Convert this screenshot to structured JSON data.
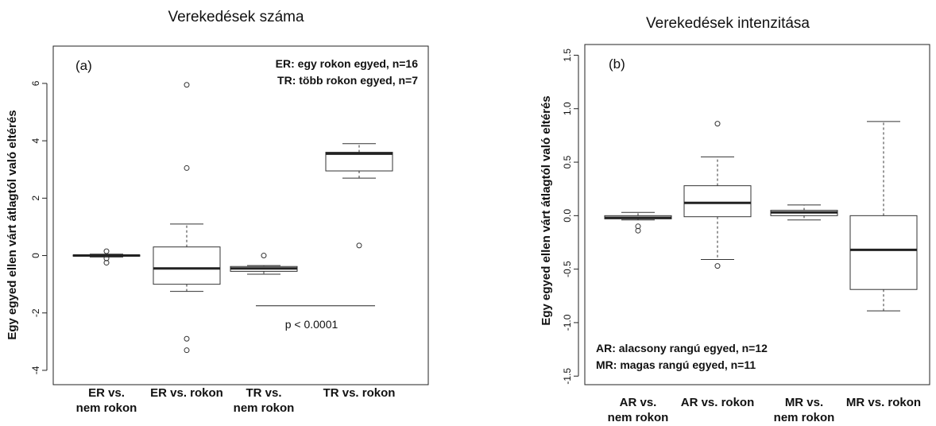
{
  "chart_data": [
    {
      "type": "box",
      "title": "Verekedések száma",
      "panel_label": "(a)",
      "ylabel": "Egy egyed ellen várt átlagtól való eltérés",
      "ylim": [
        -4.5,
        7.3
      ],
      "yticks": [
        "6",
        "4",
        "2",
        "0",
        "-2",
        "-4"
      ],
      "ytick_values": [
        6,
        4,
        2,
        0,
        -2,
        -4
      ],
      "legend": [
        "ER: egy rokon egyed, n=16",
        "TR: több rokon egyed, n=7"
      ],
      "annotation": "p < 0.0001",
      "bracket": [
        3,
        4
      ],
      "bracket_y": -1.75,
      "categories": [
        [
          "ER vs.",
          "nem rokon"
        ],
        [
          "ER vs. rokon"
        ],
        [
          "TR vs.",
          "nem rokon"
        ],
        [
          "TR vs. rokon"
        ]
      ],
      "boxes": [
        {
          "wlo": -0.05,
          "q1": -0.02,
          "med": 0.0,
          "q3": 0.02,
          "whi": 0.05,
          "outliers": [
            0.15,
            -0.1,
            -0.25
          ]
        },
        {
          "wlo": -1.25,
          "q1": -1.0,
          "med": -0.45,
          "q3": 0.3,
          "whi": 1.1,
          "outliers": [
            5.95,
            3.05,
            -2.9,
            -3.3
          ]
        },
        {
          "wlo": -0.65,
          "q1": -0.55,
          "med": -0.45,
          "q3": -0.38,
          "whi": -0.35,
          "outliers": [
            0.0
          ]
        },
        {
          "wlo": 2.7,
          "q1": 2.95,
          "med": 3.55,
          "q3": 3.6,
          "whi": 3.9,
          "outliers": [
            0.35
          ]
        }
      ]
    },
    {
      "type": "box",
      "title": "Verekedések intenzitása",
      "panel_label": "(b)",
      "ylabel": "Egy egyed ellen várt átlagtól való eltérés",
      "ylim": [
        -1.58,
        1.6
      ],
      "yticks": [
        "1.5",
        "1.0",
        "0.5",
        "0.0",
        "-0.5",
        "-1.0",
        "-1.5"
      ],
      "ytick_values": [
        1.5,
        1.0,
        0.5,
        0.0,
        -0.5,
        -1.0,
        -1.5
      ],
      "legend": [
        "AR: alacsony rangú egyed, n=12",
        "MR: magas rangú egyed, n=11"
      ],
      "categories": [
        [
          "AR vs.",
          "nem rokon"
        ],
        [
          "AR vs. rokon"
        ],
        [
          "MR vs.",
          "nem rokon"
        ],
        [
          "MR vs. rokon"
        ]
      ],
      "boxes": [
        {
          "wlo": -0.04,
          "q1": -0.03,
          "med": -0.02,
          "q3": 0.0,
          "whi": 0.03,
          "outliers": [
            -0.1,
            -0.14
          ]
        },
        {
          "wlo": -0.41,
          "q1": -0.01,
          "med": 0.12,
          "q3": 0.28,
          "whi": 0.55,
          "outliers": [
            0.86,
            -0.47
          ]
        },
        {
          "wlo": -0.04,
          "q1": 0.0,
          "med": 0.03,
          "q3": 0.05,
          "whi": 0.1,
          "outliers": []
        },
        {
          "wlo": -0.89,
          "q1": -0.69,
          "med": -0.32,
          "q3": 0.0,
          "whi": 0.88,
          "outliers": []
        }
      ]
    }
  ]
}
